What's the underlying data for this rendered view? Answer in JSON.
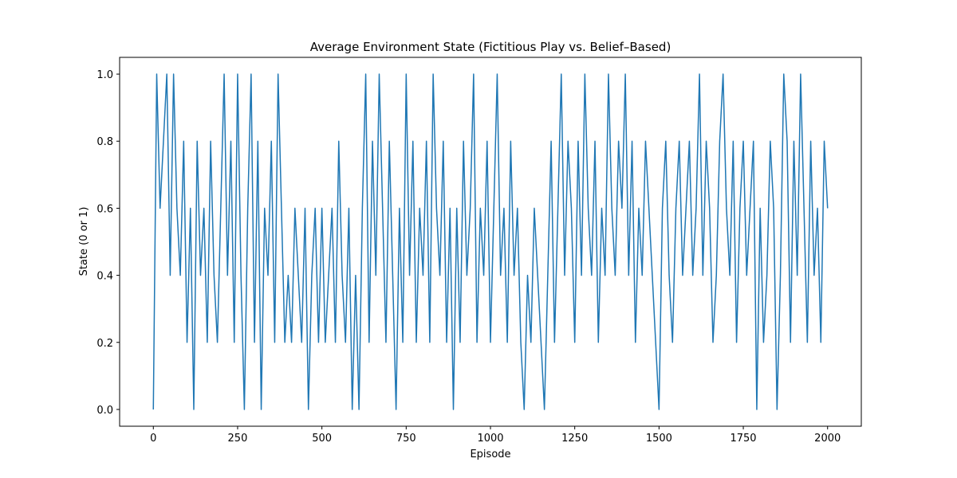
{
  "chart_data": {
    "type": "line",
    "title": "Average Environment State (Fictitious Play vs. Belief–Based)",
    "x_label": "Episode",
    "y_label": "State (0 or 1)",
    "color": "#1f77b4",
    "grid": false,
    "xlim": [
      -100,
      2100
    ],
    "ylim": [
      -0.05,
      1.05
    ],
    "xticks": [
      0,
      250,
      500,
      750,
      1000,
      1250,
      1500,
      1750,
      2000
    ],
    "yticks": [
      {
        "value": 0,
        "label": "0.0"
      },
      0.2,
      0.4,
      0.6,
      0.8,
      {
        "value": 1,
        "label": "1.0"
      }
    ],
    "x": [
      0,
      10,
      20,
      30,
      40,
      50,
      60,
      70,
      80,
      90,
      100,
      110,
      120,
      130,
      140,
      150,
      160,
      170,
      180,
      190,
      200,
      210,
      220,
      230,
      240,
      250,
      260,
      270,
      280,
      290,
      300,
      310,
      320,
      330,
      340,
      350,
      360,
      370,
      380,
      390,
      400,
      410,
      420,
      430,
      440,
      450,
      460,
      470,
      480,
      490,
      500,
      510,
      520,
      530,
      540,
      550,
      560,
      570,
      580,
      590,
      600,
      610,
      620,
      630,
      640,
      650,
      660,
      670,
      680,
      690,
      700,
      710,
      720,
      730,
      740,
      750,
      760,
      770,
      780,
      790,
      800,
      810,
      820,
      830,
      840,
      850,
      860,
      870,
      880,
      890,
      900,
      910,
      920,
      930,
      940,
      950,
      960,
      970,
      980,
      990,
      1000,
      1010,
      1020,
      1030,
      1040,
      1050,
      1060,
      1070,
      1080,
      1090,
      1100,
      1110,
      1120,
      1130,
      1140,
      1150,
      1160,
      1170,
      1180,
      1190,
      1200,
      1210,
      1220,
      1230,
      1240,
      1250,
      1260,
      1270,
      1280,
      1290,
      1300,
      1310,
      1320,
      1330,
      1340,
      1350,
      1360,
      1370,
      1380,
      1390,
      1400,
      1410,
      1420,
      1430,
      1440,
      1450,
      1460,
      1470,
      1480,
      1490,
      1500,
      1510,
      1520,
      1530,
      1540,
      1550,
      1560,
      1570,
      1580,
      1590,
      1600,
      1610,
      1620,
      1630,
      1640,
      1650,
      1660,
      1670,
      1680,
      1690,
      1700,
      1710,
      1720,
      1730,
      1740,
      1750,
      1760,
      1770,
      1780,
      1790,
      1800,
      1810,
      1820,
      1830,
      1840,
      1850,
      1860,
      1870,
      1880,
      1890,
      1900,
      1910,
      1920,
      1930,
      1940,
      1950,
      1960,
      1970,
      1980,
      1990,
      2000
    ],
    "values": [
      0,
      1.0,
      0.6,
      0.8,
      1.0,
      0.4,
      1.0,
      0.6,
      0.4,
      0.8,
      0.2,
      0.6,
      0,
      0.8,
      0.4,
      0.6,
      0.2,
      0.8,
      0.4,
      0.2,
      0.6,
      1.0,
      0.4,
      0.8,
      0.2,
      1.0,
      0.4,
      0,
      0.6,
      1.0,
      0.2,
      0.8,
      0,
      0.6,
      0.4,
      0.8,
      0.2,
      1.0,
      0.6,
      0.2,
      0.4,
      0.2,
      0.6,
      0.4,
      0.2,
      0.6,
      0,
      0.4,
      0.6,
      0.2,
      0.6,
      0.2,
      0.4,
      0.6,
      0.2,
      0.8,
      0.4,
      0.2,
      0.6,
      0,
      0.4,
      0,
      0.6,
      1.0,
      0.2,
      0.8,
      0.4,
      1.0,
      0.6,
      0.2,
      0.8,
      0.4,
      0,
      0.6,
      0.2,
      1.0,
      0.4,
      0.8,
      0.2,
      0.6,
      0.4,
      0.8,
      0.2,
      1.0,
      0.6,
      0.4,
      0.8,
      0.2,
      0.6,
      0,
      0.6,
      0.2,
      0.8,
      0.4,
      0.6,
      1.0,
      0.2,
      0.6,
      0.4,
      0.8,
      0.2,
      0.6,
      1.0,
      0.4,
      0.6,
      0.2,
      0.8,
      0.4,
      0.6,
      0.2,
      0,
      0.4,
      0.2,
      0.6,
      0.4,
      0.2,
      0,
      0.4,
      0.8,
      0.2,
      0.6,
      1.0,
      0.4,
      0.8,
      0.6,
      0.2,
      0.8,
      0.4,
      1.0,
      0.6,
      0.4,
      0.8,
      0.2,
      0.6,
      0.4,
      1.0,
      0.6,
      0.4,
      0.8,
      0.6,
      1.0,
      0.4,
      0.8,
      0.2,
      0.6,
      0.4,
      0.8,
      0.6,
      0.4,
      0.2,
      0,
      0.6,
      0.8,
      0.4,
      0.2,
      0.6,
      0.8,
      0.4,
      0.6,
      0.8,
      0.4,
      0.6,
      1.0,
      0.4,
      0.8,
      0.6,
      0.2,
      0.4,
      0.8,
      1.0,
      0.6,
      0.4,
      0.8,
      0.2,
      0.6,
      0.8,
      0.4,
      0.6,
      0.8,
      0,
      0.6,
      0.2,
      0.4,
      0.8,
      0.6,
      0,
      0.4,
      1.0,
      0.8,
      0.2,
      0.8,
      0.4,
      1.0,
      0.6,
      0.2,
      0.8,
      0.4,
      0.6,
      0.2,
      0.8,
      0.6
    ]
  }
}
